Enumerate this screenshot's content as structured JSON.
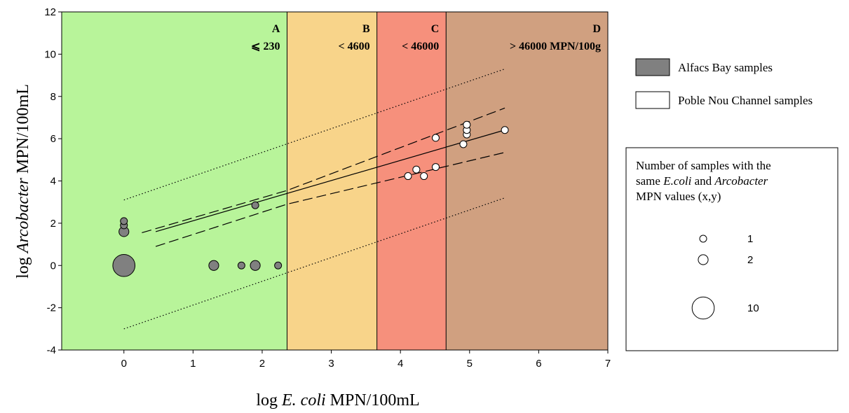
{
  "chart_data": {
    "type": "scatter",
    "xlabel": {
      "prefix": "log ",
      "italic": "E. coli",
      "suffix": " MPN/100mL"
    },
    "ylabel": {
      "prefix": "log ",
      "italic": "Arcobacter",
      "suffix": " MPN/100mL"
    },
    "xlim": [
      -0.9,
      7
    ],
    "ylim": [
      -4,
      12
    ],
    "x_ticks": [
      0,
      1,
      2,
      3,
      4,
      5,
      6,
      7
    ],
    "y_ticks": [
      -4,
      -2,
      0,
      2,
      4,
      6,
      8,
      10,
      12
    ],
    "grid": false,
    "zones": [
      {
        "letter": "A",
        "label": "⩽ 230",
        "x0": -0.9,
        "x1": 2.36,
        "color": "#b8f49a"
      },
      {
        "letter": "B",
        "label": "< 4600",
        "x0": 2.36,
        "x1": 3.66,
        "color": "#f8d48a"
      },
      {
        "letter": "C",
        "label": "< 46000",
        "x0": 3.66,
        "x1": 4.66,
        "color": "#f6907c"
      },
      {
        "letter": "D",
        "label": "> 46000 MPN/100g",
        "x0": 4.66,
        "x1": 7,
        "color": "#d0a080"
      }
    ],
    "series": [
      {
        "name": "Alfacs Bay samples",
        "fill": "#808080",
        "points": [
          {
            "x": 0,
            "y": 0,
            "n": 10
          },
          {
            "x": 0,
            "y": 1.6,
            "n": 2
          },
          {
            "x": 0,
            "y": 1.9,
            "n": 1
          },
          {
            "x": 0,
            "y": 2.1,
            "n": 1
          },
          {
            "x": 1.3,
            "y": 0,
            "n": 2
          },
          {
            "x": 1.7,
            "y": 0,
            "n": 1
          },
          {
            "x": 1.9,
            "y": 0,
            "n": 2
          },
          {
            "x": 2.23,
            "y": 0,
            "n": 1
          },
          {
            "x": 1.9,
            "y": 2.85,
            "n": 1
          }
        ]
      },
      {
        "name": "Poble Nou Channel samples",
        "fill": "#ffffff",
        "points": [
          {
            "x": 4.11,
            "y": 4.23,
            "n": 1
          },
          {
            "x": 4.23,
            "y": 4.54,
            "n": 1
          },
          {
            "x": 4.34,
            "y": 4.23,
            "n": 1
          },
          {
            "x": 4.51,
            "y": 4.66,
            "n": 1
          },
          {
            "x": 4.51,
            "y": 6.04,
            "n": 1
          },
          {
            "x": 4.91,
            "y": 5.74,
            "n": 1
          },
          {
            "x": 4.96,
            "y": 6.2,
            "n": 1
          },
          {
            "x": 4.96,
            "y": 6.41,
            "n": 1
          },
          {
            "x": 4.96,
            "y": 6.66,
            "n": 1
          },
          {
            "x": 5.51,
            "y": 6.41,
            "n": 1
          }
        ]
      }
    ],
    "regression": {
      "x0": 0.46,
      "x1": 5.51,
      "y0": 1.6,
      "y1": 6.41
    },
    "confidence_lower": [
      [
        0.46,
        0.9
      ],
      [
        2.36,
        2.9
      ],
      [
        5.51,
        5.35
      ]
    ],
    "confidence_upper": [
      [
        0.26,
        1.55
      ],
      [
        2.36,
        3.55
      ],
      [
        5.51,
        7.45
      ]
    ],
    "prediction_lower": [
      [
        0,
        -3.0
      ],
      [
        5.51,
        3.2
      ]
    ],
    "prediction_upper": [
      [
        0,
        3.1
      ],
      [
        5.51,
        9.3
      ]
    ],
    "legend": {
      "series": [
        "Alfacs Bay samples",
        "Poble Nou Channel samples"
      ],
      "size_title": [
        [
          {
            "t": "Number of samples with the",
            "i": false
          }
        ],
        [
          {
            "t": "same ",
            "i": false
          },
          {
            "t": "E.coli",
            "i": true
          },
          {
            "t": " and ",
            "i": false
          },
          {
            "t": "Arcobacter",
            "i": true
          }
        ],
        [
          {
            "t": "MPN values (x,y)",
            "i": false
          }
        ]
      ],
      "size_items": [
        {
          "label": "1",
          "n": 1
        },
        {
          "label": "2",
          "n": 2
        },
        {
          "label": "10",
          "n": 10
        }
      ]
    }
  }
}
